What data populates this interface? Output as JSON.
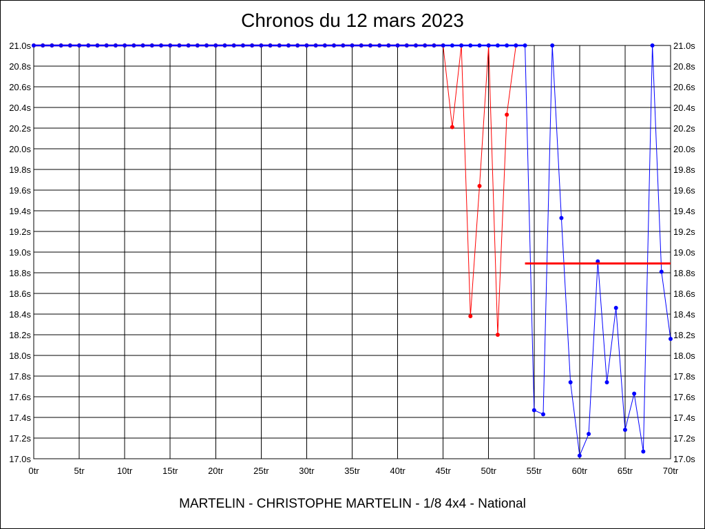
{
  "chart_data": {
    "type": "line",
    "title": "Chronos du 12 mars 2023",
    "subtitle": "MARTELIN - CHRISTOPHE MARTELIN - 1/8 4x4 - National",
    "xlim": [
      0,
      70
    ],
    "ylim": [
      17.0,
      21.0
    ],
    "x_ticks": [
      0,
      5,
      10,
      15,
      20,
      25,
      30,
      35,
      40,
      45,
      50,
      55,
      60,
      65,
      70
    ],
    "x_tick_labels": [
      "0tr",
      "5tr",
      "10tr",
      "15tr",
      "20tr",
      "25tr",
      "30tr",
      "35tr",
      "40tr",
      "45tr",
      "50tr",
      "55tr",
      "60tr",
      "65tr",
      "70tr"
    ],
    "y_ticks": [
      17.0,
      17.2,
      17.4,
      17.6,
      17.8,
      18.0,
      18.2,
      18.4,
      18.6,
      18.8,
      19.0,
      19.2,
      19.4,
      19.6,
      19.8,
      20.0,
      20.2,
      20.4,
      20.6,
      20.8,
      21.0
    ],
    "y_tick_labels": [
      "17.0s",
      "17.2s",
      "17.4s",
      "17.6s",
      "17.8s",
      "18.0s",
      "18.2s",
      "18.4s",
      "18.6s",
      "18.8s",
      "19.0s",
      "19.2s",
      "19.4s",
      "19.6s",
      "19.8s",
      "20.0s",
      "20.2s",
      "20.4s",
      "20.6s",
      "20.8s",
      "21.0s"
    ],
    "grid": true,
    "series": [
      {
        "color": "#ff0000",
        "x": [
          0,
          1,
          2,
          3,
          4,
          5,
          6,
          7,
          8,
          9,
          10,
          11,
          12,
          13,
          14,
          15,
          16,
          17,
          18,
          19,
          20,
          21,
          22,
          23,
          24,
          25,
          26,
          27,
          28,
          29,
          30,
          31,
          32,
          33,
          34,
          35,
          36,
          37,
          38,
          39,
          40,
          41,
          42,
          43,
          44,
          45,
          46,
          47,
          48,
          49,
          50,
          51,
          52,
          53
        ],
        "y": [
          21.0,
          21.0,
          21.0,
          21.0,
          21.0,
          21.0,
          21.0,
          21.0,
          21.0,
          21.0,
          21.0,
          21.0,
          21.0,
          21.0,
          21.0,
          21.0,
          21.0,
          21.0,
          21.0,
          21.0,
          21.0,
          21.0,
          21.0,
          21.0,
          21.0,
          21.0,
          21.0,
          21.0,
          21.0,
          21.0,
          21.0,
          21.0,
          21.0,
          21.0,
          21.0,
          21.0,
          21.0,
          21.0,
          21.0,
          21.0,
          21.0,
          21.0,
          21.0,
          21.0,
          21.0,
          21.0,
          20.21,
          21.0,
          18.38,
          19.64,
          21.0,
          18.2,
          20.33,
          21.0
        ]
      },
      {
        "color": "#0000ff",
        "x": [
          0,
          1,
          2,
          3,
          4,
          5,
          6,
          7,
          8,
          9,
          10,
          11,
          12,
          13,
          14,
          15,
          16,
          17,
          18,
          19,
          20,
          21,
          22,
          23,
          24,
          25,
          26,
          27,
          28,
          29,
          30,
          31,
          32,
          33,
          34,
          35,
          36,
          37,
          38,
          39,
          40,
          41,
          42,
          43,
          44,
          45,
          46,
          47,
          48,
          49,
          50,
          51,
          52,
          53,
          54,
          55,
          56,
          57,
          58,
          59,
          60,
          61,
          62,
          63,
          64,
          65,
          66,
          67,
          68,
          69,
          70
        ],
        "y": [
          21.0,
          21.0,
          21.0,
          21.0,
          21.0,
          21.0,
          21.0,
          21.0,
          21.0,
          21.0,
          21.0,
          21.0,
          21.0,
          21.0,
          21.0,
          21.0,
          21.0,
          21.0,
          21.0,
          21.0,
          21.0,
          21.0,
          21.0,
          21.0,
          21.0,
          21.0,
          21.0,
          21.0,
          21.0,
          21.0,
          21.0,
          21.0,
          21.0,
          21.0,
          21.0,
          21.0,
          21.0,
          21.0,
          21.0,
          21.0,
          21.0,
          21.0,
          21.0,
          21.0,
          21.0,
          21.0,
          21.0,
          21.0,
          21.0,
          21.0,
          21.0,
          21.0,
          21.0,
          21.0,
          21.0,
          17.47,
          17.43,
          21.0,
          19.33,
          17.74,
          17.03,
          17.24,
          18.91,
          17.74,
          18.46,
          17.28,
          17.63,
          17.07,
          21.0,
          18.81,
          18.16
        ]
      }
    ],
    "reference_line": {
      "color": "#ff0000",
      "x": [
        54,
        70
      ],
      "y": 18.89
    }
  }
}
